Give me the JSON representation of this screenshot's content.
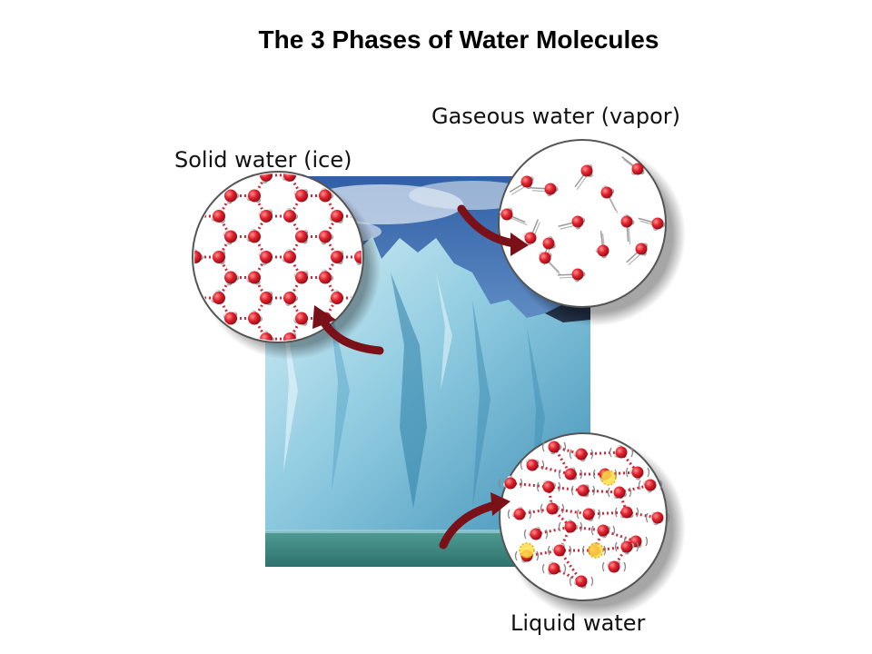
{
  "slide": {
    "title": "The 3 Phases of Water Molecules"
  },
  "labels": {
    "solid": "Solid water (ice)",
    "gas": "Gaseous water (vapor)",
    "liquid": "Liquid water"
  },
  "colors": {
    "oxygen": "#d8202c",
    "arrow": "#7a1118",
    "bond": "#cc2a3a",
    "ice_light": "#bfe3f0",
    "ice_dark": "#4a9bc0",
    "water": "#3e8a84"
  }
}
